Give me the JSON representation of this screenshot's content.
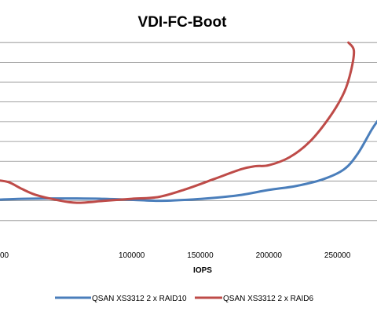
{
  "chart_data": {
    "type": "line",
    "title": "VDI-FC-Boot",
    "xlabel": "IOPS",
    "ylabel": "",
    "xlim": [
      0,
      280000
    ],
    "ylim": [
      0,
      11
    ],
    "x_ticks": [
      100000,
      150000,
      200000,
      250000
    ],
    "x_tick_labels": [
      "100000",
      "150000",
      "200000",
      "250000"
    ],
    "y_gridlines": [
      1,
      2,
      3,
      4,
      5,
      6,
      7,
      8,
      9,
      10
    ],
    "grid": true,
    "legend_position": "bottom",
    "series": [
      {
        "name": "QSAN XS3312 2 x RAID10",
        "color": "#4a7ebb",
        "points": [
          [
            0,
            2.05
          ],
          [
            20000,
            2.1
          ],
          [
            40000,
            2.12
          ],
          [
            60000,
            2.12
          ],
          [
            80000,
            2.1
          ],
          [
            100000,
            2.05
          ],
          [
            120000,
            2.0
          ],
          [
            140000,
            2.05
          ],
          [
            160000,
            2.15
          ],
          [
            180000,
            2.3
          ],
          [
            200000,
            2.55
          ],
          [
            220000,
            2.75
          ],
          [
            240000,
            3.1
          ],
          [
            255000,
            3.6
          ],
          [
            265000,
            4.4
          ],
          [
            275000,
            5.6
          ],
          [
            280000,
            6.1
          ]
        ]
      },
      {
        "name": "QSAN XS3312 2 x RAID6",
        "color": "#be4b48",
        "points": [
          [
            0,
            3.05
          ],
          [
            10000,
            2.95
          ],
          [
            20000,
            2.6
          ],
          [
            30000,
            2.3
          ],
          [
            45000,
            2.05
          ],
          [
            60000,
            1.9
          ],
          [
            80000,
            2.0
          ],
          [
            100000,
            2.1
          ],
          [
            120000,
            2.2
          ],
          [
            140000,
            2.6
          ],
          [
            160000,
            3.1
          ],
          [
            180000,
            3.6
          ],
          [
            190000,
            3.75
          ],
          [
            200000,
            3.8
          ],
          [
            215000,
            4.2
          ],
          [
            230000,
            5.0
          ],
          [
            245000,
            6.3
          ],
          [
            255000,
            7.5
          ],
          [
            260000,
            8.6
          ],
          [
            262000,
            9.6
          ],
          [
            258000,
            10.0
          ]
        ]
      }
    ]
  }
}
